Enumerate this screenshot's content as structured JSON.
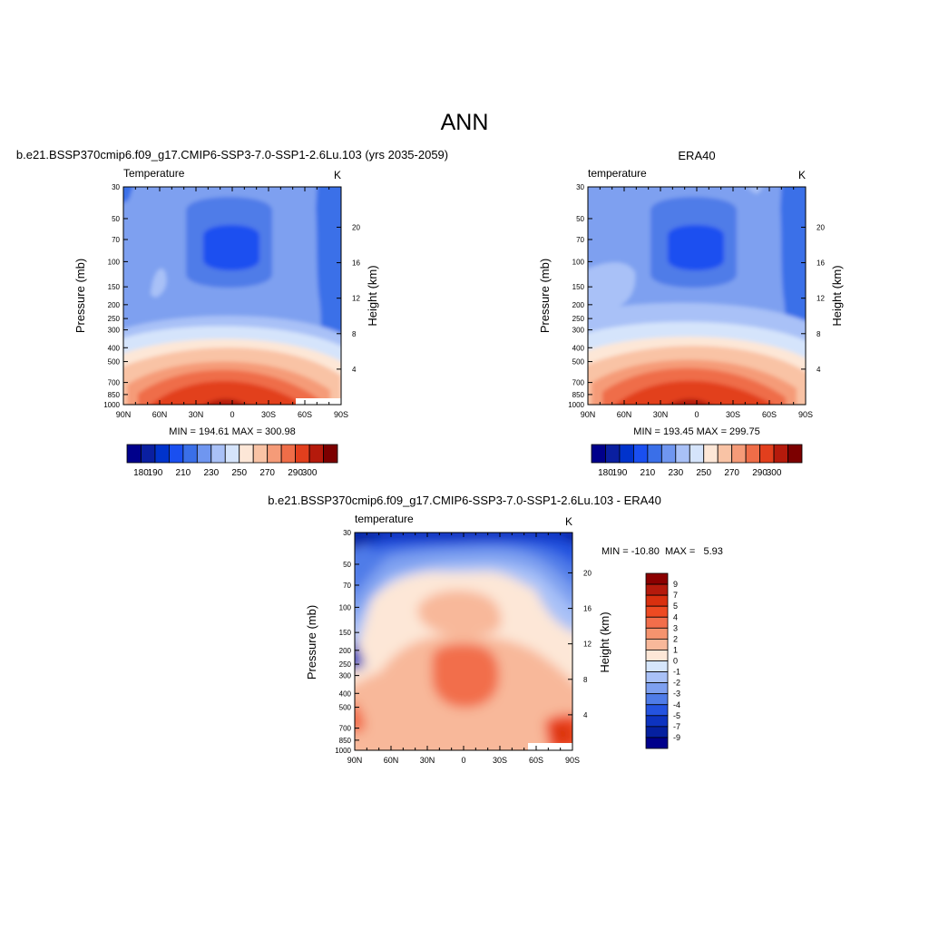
{
  "figure": {
    "title": "ANN"
  },
  "chart_data": [
    {
      "type": "heatmap",
      "title": "b.e21.BSSP370cmip6.f09_g17.CMIP6-SSP3-7.0-SSP1-2.6Lu.103 (yrs 2035-2059)",
      "left_label": "Temperature",
      "units": "K",
      "ylabel": "Pressure (mb)",
      "ylabel_right": "Height (km)",
      "x_ticks": [
        "90N",
        "60N",
        "30N",
        "0",
        "30S",
        "60S",
        "90S"
      ],
      "y_ticks": [
        "30",
        "50",
        "70",
        "100",
        "150",
        "200",
        "250",
        "300",
        "400",
        "500",
        "700",
        "850",
        "1000"
      ],
      "height_ticks": [
        "4",
        "8",
        "12",
        "16",
        "20"
      ],
      "stats": "MIN = 194.61  MAX = 300.98",
      "colorbar": {
        "levels": [
          180,
          190,
          200,
          210,
          220,
          230,
          240,
          250,
          260,
          270,
          280,
          290,
          300
        ],
        "labels": [
          "180",
          "190",
          "210",
          "230",
          "250",
          "270",
          "290",
          "300"
        ],
        "colors": [
          "#00008b",
          "#0a1fa0",
          "#0033cc",
          "#1a4ff0",
          "#3a6fe8",
          "#6f96f0",
          "#a9c1f7",
          "#d5e4fb",
          "#fde7d7",
          "#f9c3a5",
          "#f59b78",
          "#ef6d48",
          "#e23f1d",
          "#b51a0c",
          "#7c0000"
        ]
      }
    },
    {
      "type": "heatmap",
      "title": "ERA40",
      "left_label": "temperature",
      "units": "K",
      "ylabel": "Pressure (mb)",
      "ylabel_right": "Height (km)",
      "x_ticks": [
        "90N",
        "60N",
        "30N",
        "0",
        "30S",
        "60S",
        "90S"
      ],
      "y_ticks": [
        "30",
        "50",
        "70",
        "100",
        "150",
        "200",
        "250",
        "300",
        "400",
        "500",
        "700",
        "850",
        "1000"
      ],
      "height_ticks": [
        "4",
        "8",
        "12",
        "16",
        "20"
      ],
      "stats": "MIN = 193.45  MAX = 299.75",
      "colorbar": {
        "levels": [
          180,
          190,
          200,
          210,
          220,
          230,
          240,
          250,
          260,
          270,
          280,
          290,
          300
        ],
        "labels": [
          "180",
          "190",
          "210",
          "230",
          "250",
          "270",
          "290",
          "300"
        ],
        "colors": [
          "#00008b",
          "#0a1fa0",
          "#0033cc",
          "#1a4ff0",
          "#3a6fe8",
          "#6f96f0",
          "#a9c1f7",
          "#d5e4fb",
          "#fde7d7",
          "#f9c3a5",
          "#f59b78",
          "#ef6d48",
          "#e23f1d",
          "#b51a0c",
          "#7c0000"
        ]
      }
    },
    {
      "type": "heatmap",
      "title": "b.e21.BSSP370cmip6.f09_g17.CMIP6-SSP3-7.0-SSP1-2.6Lu.103 - ERA40",
      "left_label": "temperature",
      "units": "K",
      "ylabel": "Pressure (mb)",
      "ylabel_right": "Height (km)",
      "x_ticks": [
        "90N",
        "60N",
        "30N",
        "0",
        "30S",
        "60S",
        "90S"
      ],
      "y_ticks": [
        "30",
        "50",
        "70",
        "100",
        "150",
        "200",
        "250",
        "300",
        "400",
        "500",
        "700",
        "850",
        "1000"
      ],
      "height_ticks": [
        "4",
        "8",
        "12",
        "16",
        "20"
      ],
      "stats": "MIN = -10.80  MAX =   5.93",
      "colorbar": {
        "levels": [
          -9,
          -7,
          -5,
          -4,
          -3,
          -2,
          -1,
          0,
          1,
          2,
          3,
          4,
          5,
          7,
          9
        ],
        "labels": [
          "9",
          "7",
          "5",
          "4",
          "3",
          "2",
          "1",
          "0",
          "-1",
          "-2",
          "-3",
          "-4",
          "-5",
          "-7",
          "-9"
        ],
        "colors": [
          "#8b0000",
          "#b51a0c",
          "#d9300f",
          "#ee4a22",
          "#f26e4b",
          "#f5936e",
          "#f8b89a",
          "#fde7d7",
          "#d6e6fb",
          "#a9c1f7",
          "#7ea0f0",
          "#4f7ce8",
          "#2453e0",
          "#0d33c0",
          "#0520a0",
          "#00008b"
        ]
      }
    }
  ]
}
